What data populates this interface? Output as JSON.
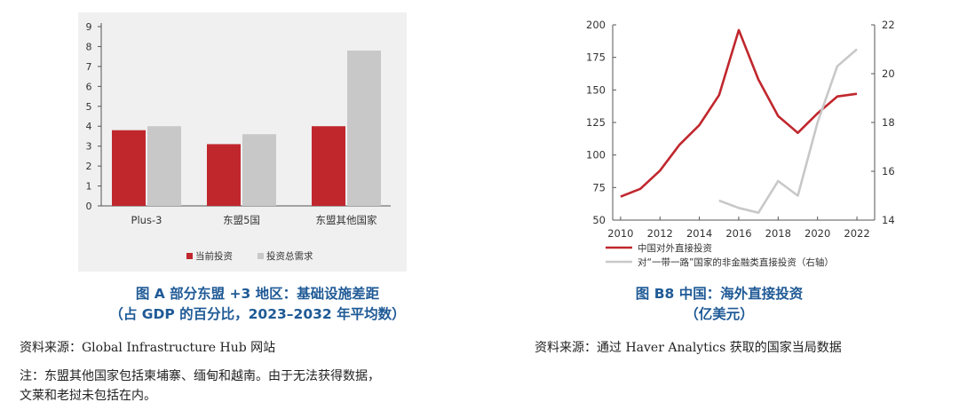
{
  "chart_data": [
    {
      "type": "bar",
      "categories": [
        "Plus-3",
        "东盟5国",
        "东盟其他国家"
      ],
      "series": [
        {
          "name": "当前投资",
          "values": [
            3.8,
            3.1,
            4.0
          ],
          "color": "#c0272d"
        },
        {
          "name": "投资总需求",
          "values": [
            4.0,
            3.6,
            7.8
          ],
          "color": "#c8c8c8"
        }
      ],
      "ylim": [
        0,
        9
      ],
      "yticks": [
        "0",
        "1",
        "2",
        "3",
        "4",
        "5",
        "6",
        "7",
        "8",
        "9"
      ],
      "legend_position": "bottom",
      "grid": false
    },
    {
      "type": "line",
      "x": [
        2010,
        2011,
        2012,
        2013,
        2014,
        2015,
        2016,
        2017,
        2018,
        2019,
        2020,
        2021,
        2022
      ],
      "xticks": [
        "2010",
        "2012",
        "2014",
        "2016",
        "2018",
        "2020",
        "2022"
      ],
      "series": [
        {
          "name": "中国对外直接投资",
          "axis": "left",
          "color": "#c0272d",
          "values": [
            68,
            74,
            88,
            108,
            123,
            146,
            196,
            158,
            130,
            117,
            132,
            145,
            147
          ]
        },
        {
          "name": "对“一带一路”国家的非金融类直接投资（右轴）",
          "axis": "right",
          "color": "#c8c8c8",
          "x": [
            2015,
            2016,
            2017,
            2018,
            2019,
            2020,
            2021,
            2022
          ],
          "values": [
            14.8,
            14.5,
            14.3,
            15.6,
            15.0,
            18.0,
            20.3,
            21.0
          ]
        }
      ],
      "y_left": {
        "lim": [
          50,
          200
        ],
        "ticks": [
          "50",
          "75",
          "100",
          "125",
          "150",
          "175",
          "200"
        ]
      },
      "y_right": {
        "lim": [
          14,
          22
        ],
        "ticks": [
          "14",
          "16",
          "18",
          "20",
          "22"
        ]
      },
      "legend_position": "bottom",
      "grid": false
    }
  ],
  "panel_a": {
    "caption_line1": "图 A 部分东盟 +3 地区：基础设施差距",
    "caption_line2": "（占 GDP 的百分比，2023–2032 年平均数）",
    "source": "资料来源：Global Infrastructure Hub 网站",
    "note_line1": "注：东盟其他国家包括柬埔寨、缅甸和越南。由于无法获得数据，",
    "note_line2": "文莱和老挝未包括在内。"
  },
  "panel_b": {
    "caption_line1": "图 B8 中国：海外直接投资",
    "caption_line2": "（亿美元）",
    "source": "资料来源：通过 Haver Analytics 获取的国家当局数据"
  }
}
